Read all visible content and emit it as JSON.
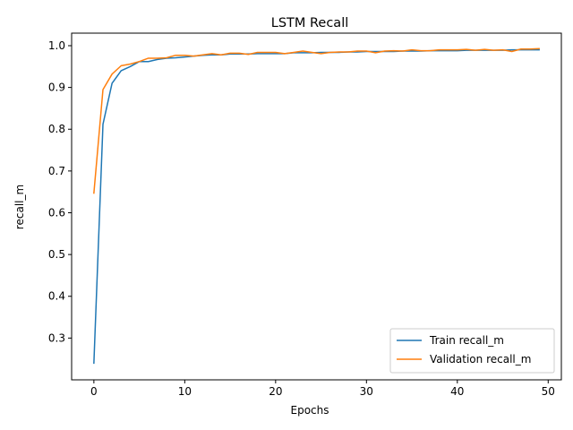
{
  "chart_data": {
    "type": "line",
    "title": "LSTM Recall",
    "xlabel": "Epochs",
    "ylabel": "recall_m",
    "xlim": [
      -2.45,
      51.45
    ],
    "ylim": [
      0.2,
      1.03
    ],
    "xticks": [
      0,
      10,
      20,
      30,
      40,
      50
    ],
    "yticks": [
      0.3,
      0.4,
      0.5,
      0.6,
      0.7,
      0.8,
      0.9,
      1.0
    ],
    "ytick_labels": [
      "0.3",
      "0.4",
      "0.5",
      "0.6",
      "0.7",
      "0.8",
      "0.9",
      "1.0"
    ],
    "grid": false,
    "legend_position": "lower-right",
    "x": [
      0,
      1,
      2,
      3,
      4,
      5,
      6,
      7,
      8,
      9,
      10,
      11,
      12,
      13,
      14,
      15,
      16,
      17,
      18,
      19,
      20,
      21,
      22,
      23,
      24,
      25,
      26,
      27,
      28,
      29,
      30,
      31,
      32,
      33,
      34,
      35,
      36,
      37,
      38,
      39,
      40,
      41,
      42,
      43,
      44,
      45,
      46,
      47,
      48,
      49
    ],
    "series": [
      {
        "name": "Train recall_m",
        "color": "#1f77b4",
        "values": [
          0.24,
          0.812,
          0.91,
          0.94,
          0.95,
          0.962,
          0.962,
          0.967,
          0.97,
          0.971,
          0.973,
          0.975,
          0.977,
          0.978,
          0.978,
          0.98,
          0.98,
          0.98,
          0.981,
          0.981,
          0.981,
          0.981,
          0.983,
          0.983,
          0.983,
          0.984,
          0.984,
          0.984,
          0.985,
          0.985,
          0.986,
          0.986,
          0.986,
          0.986,
          0.987,
          0.987,
          0.987,
          0.988,
          0.988,
          0.988,
          0.988,
          0.989,
          0.989,
          0.989,
          0.989,
          0.989,
          0.99,
          0.99,
          0.99,
          0.99
        ]
      },
      {
        "name": "Validation recall_m",
        "color": "#ff7f0e",
        "values": [
          0.647,
          0.895,
          0.932,
          0.952,
          0.956,
          0.962,
          0.97,
          0.97,
          0.971,
          0.977,
          0.977,
          0.975,
          0.978,
          0.981,
          0.978,
          0.982,
          0.982,
          0.979,
          0.984,
          0.984,
          0.984,
          0.981,
          0.984,
          0.987,
          0.984,
          0.981,
          0.984,
          0.985,
          0.985,
          0.987,
          0.987,
          0.983,
          0.987,
          0.988,
          0.987,
          0.99,
          0.988,
          0.988,
          0.99,
          0.99,
          0.99,
          0.991,
          0.989,
          0.991,
          0.989,
          0.99,
          0.986,
          0.992,
          0.992,
          0.993
        ]
      }
    ]
  }
}
